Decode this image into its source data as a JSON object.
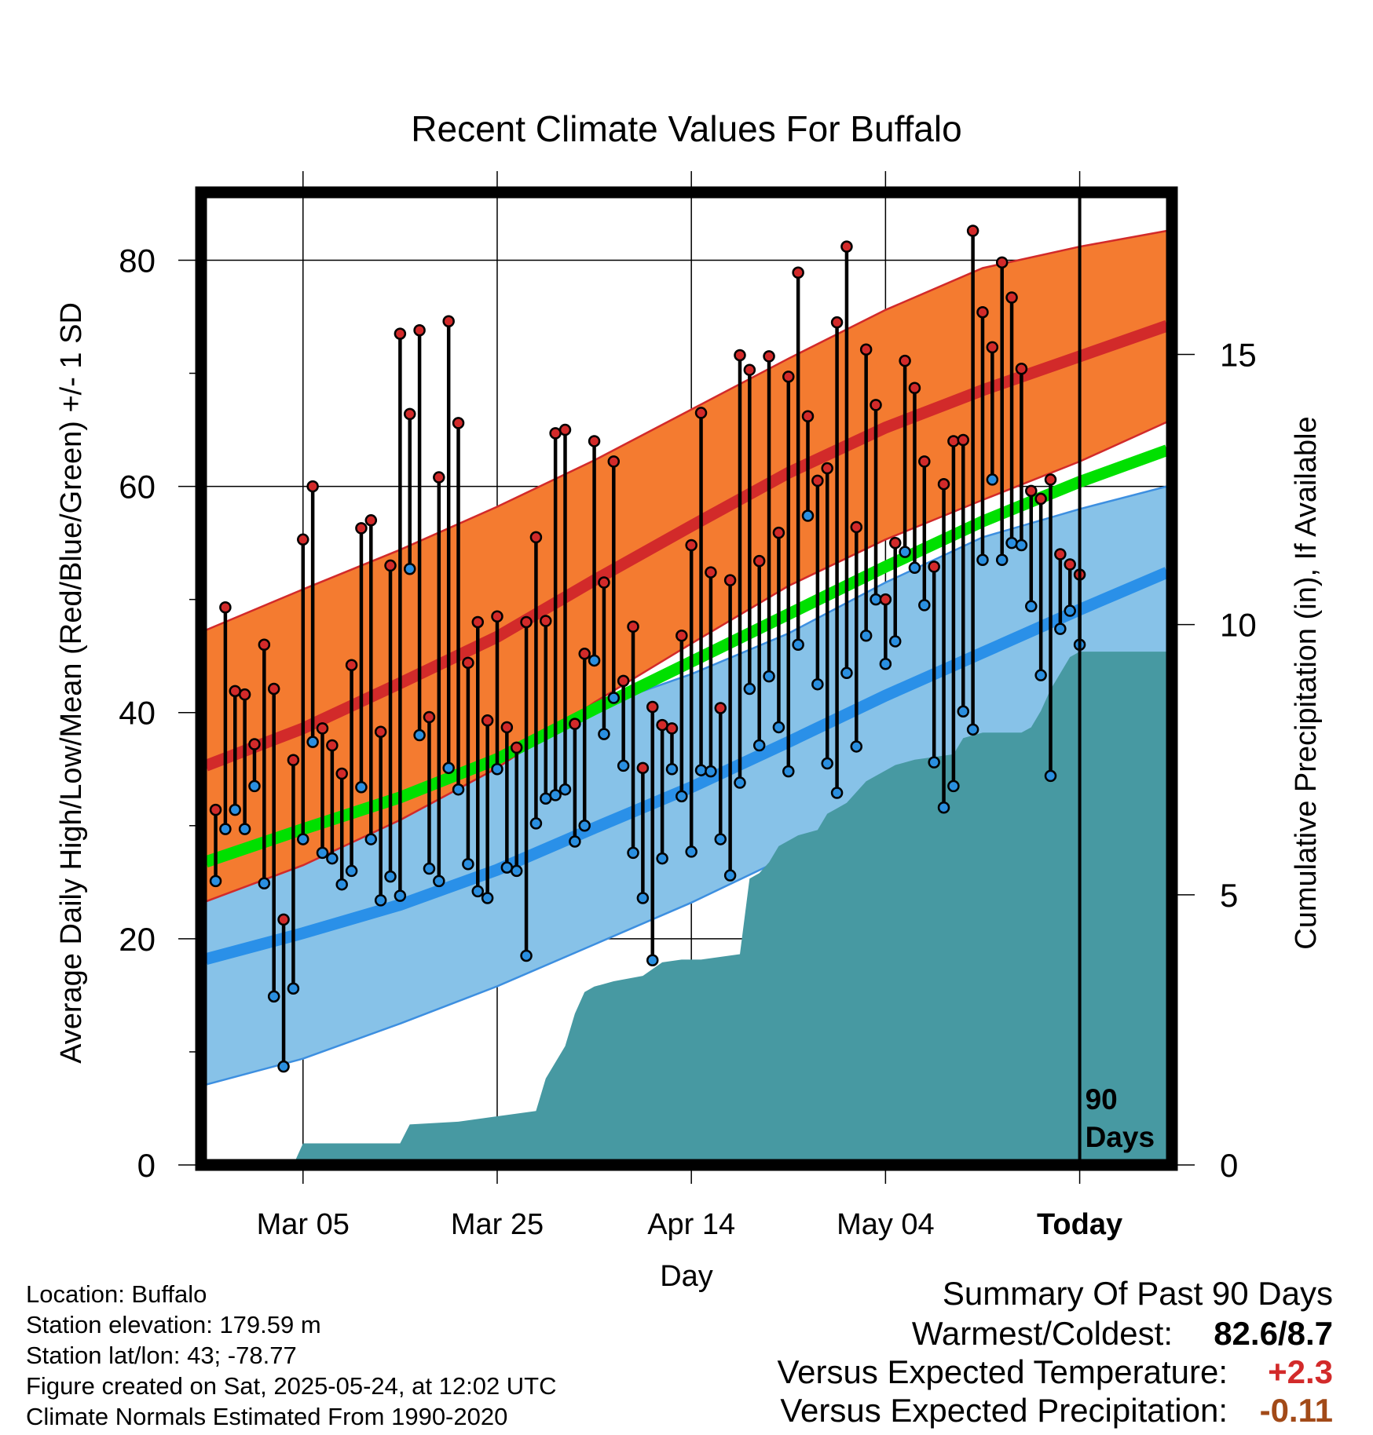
{
  "chart_data": {
    "type": "line",
    "title": "Recent Climate Values For Buffalo",
    "xlabel": "Day",
    "ylabel": "Average Daily High/Low/Mean (Red/Blue/Green) +/- 1 SD",
    "y2label": "Cumulative Precipitation (in), If Available",
    "ylim": [
      0,
      86
    ],
    "y2lim": [
      0,
      18
    ],
    "yticks": [
      "0",
      "20",
      "40",
      "60",
      "80"
    ],
    "y2ticks": [
      "0",
      "5",
      "10",
      "15"
    ],
    "xticks": [
      "Mar 05",
      "Mar 25",
      "Apr 14",
      "May 04",
      "Today"
    ],
    "xtick_days": [
      -80,
      -60,
      -40,
      -20,
      0
    ],
    "xlim_days": [
      -90.5,
      9.5
    ],
    "today_marker": {
      "day": 0,
      "label": [
        "90",
        "Days"
      ]
    },
    "grid": true,
    "colors": {
      "high_band": "#f47b30",
      "high_mean": "#d22a2a",
      "low_band": "#87c2e8",
      "low_mean": "#2a90e8",
      "low_band_edge": "#3d8fe0",
      "mean_line": "#00e000",
      "overlap": "#8e1515",
      "precip": "#4799a2",
      "high_dot": "#d22a2a",
      "low_dot": "#2a8fe0",
      "positive": "#d22a2a",
      "precip_dev": "#a24a18"
    },
    "normals": {
      "day": [
        -90,
        -80,
        -70,
        -60,
        -50,
        -40,
        -30,
        -20,
        -10,
        0,
        9
      ],
      "high_mean": [
        35.3,
        38.6,
        42.6,
        46.7,
        51.7,
        56.5,
        61.2,
        65.2,
        68.5,
        71.5,
        74.2
      ],
      "high_upper": [
        47.3,
        50.9,
        54.4,
        58.2,
        62.3,
        66.8,
        71.3,
        75.6,
        79.3,
        81.2,
        82.6
      ],
      "high_lower": [
        23.3,
        26.5,
        30.5,
        35.1,
        40.9,
        46.1,
        51.2,
        55.3,
        58.8,
        62.2,
        65.7
      ],
      "low_mean": [
        18.2,
        20.5,
        23.0,
        26.1,
        29.8,
        33.4,
        37.4,
        41.5,
        45.3,
        49.1,
        52.4
      ],
      "low_upper": [
        29.8,
        32.6,
        34.8,
        37.6,
        40.4,
        43.4,
        47.0,
        51.5,
        55.5,
        58.0,
        60.0
      ],
      "low_lower": [
        7.1,
        9.4,
        12.5,
        15.8,
        19.5,
        23.2,
        27.3,
        31.2,
        35.0,
        39.1,
        44.7
      ],
      "mean": [
        26.8,
        29.7,
        32.5,
        35.9,
        40.3,
        44.5,
        48.7,
        52.9,
        56.9,
        60.4,
        63.2
      ]
    },
    "series": [
      {
        "name": "High",
        "values": [
          31.4,
          49.3,
          41.9,
          41.6,
          37.2,
          46.0,
          42.1,
          21.7,
          35.8,
          55.3,
          60.0,
          38.6,
          37.1,
          34.6,
          44.2,
          56.3,
          57.0,
          38.3,
          53.0,
          73.5,
          66.4,
          73.8,
          39.6,
          60.8,
          74.6,
          65.6,
          44.4,
          48.0,
          39.3,
          48.5,
          38.7,
          36.9,
          48.0,
          55.5,
          48.1,
          64.7,
          65.0,
          39.0,
          45.2,
          64.0,
          51.5,
          62.2,
          42.8,
          47.6,
          35.1,
          40.5,
          38.9,
          38.6,
          46.8,
          54.8,
          66.5,
          52.4,
          40.4,
          51.7,
          71.6,
          70.3,
          53.4,
          71.5,
          55.9,
          69.7,
          78.9,
          66.2,
          60.5,
          61.6,
          74.5,
          81.2,
          56.4,
          72.1,
          67.2,
          50.0,
          55.0,
          71.1,
          68.7,
          62.2,
          52.9,
          60.2,
          64.0,
          64.1,
          82.6,
          75.4,
          72.3,
          79.8,
          76.7,
          70.4,
          59.6,
          58.9,
          60.6,
          54.0,
          53.1,
          52.2
        ]
      },
      {
        "name": "Low",
        "values": [
          25.1,
          29.7,
          31.4,
          29.7,
          33.5,
          24.9,
          14.9,
          8.7,
          15.6,
          28.8,
          37.4,
          27.6,
          27.1,
          24.8,
          26.0,
          33.4,
          28.8,
          23.4,
          25.5,
          23.8,
          52.7,
          38.0,
          26.2,
          25.1,
          35.1,
          33.2,
          26.6,
          24.2,
          23.6,
          35.0,
          26.3,
          26.0,
          18.5,
          30.2,
          32.4,
          32.7,
          33.2,
          28.6,
          30.0,
          44.6,
          38.1,
          41.3,
          35.3,
          27.6,
          23.6,
          18.1,
          27.1,
          35.0,
          32.6,
          27.7,
          34.9,
          34.8,
          28.8,
          25.6,
          33.8,
          42.1,
          37.1,
          43.2,
          38.7,
          34.8,
          46.0,
          57.4,
          42.5,
          35.5,
          32.9,
          43.5,
          37.0,
          46.8,
          50.0,
          44.3,
          46.3,
          54.2,
          52.8,
          49.5,
          35.6,
          31.6,
          33.5,
          40.1,
          38.5,
          53.5,
          60.6,
          53.5,
          55.0,
          54.8,
          49.4,
          43.3,
          34.4,
          47.4,
          49.0,
          46.0
        ]
      },
      {
        "name": "Cumulative Precipitation",
        "axis": "right",
        "day": [
          -90,
          -81,
          -80,
          -70,
          -69,
          -64,
          -60,
          -56,
          -55,
          -53,
          -52,
          -51,
          -50,
          -48,
          -45,
          -43,
          -41,
          -39,
          -35,
          -34,
          -33,
          -32,
          -31,
          -29,
          -27,
          -26,
          -25,
          -24,
          -23,
          -22,
          -21,
          -20,
          -19,
          -17,
          -13,
          -12,
          -10,
          -9,
          -8,
          -6,
          -5,
          -4,
          -3,
          -2,
          -1,
          0,
          9
        ],
        "values": [
          0,
          0,
          0.4,
          0.4,
          0.75,
          0.8,
          0.9,
          1.0,
          1.6,
          2.2,
          2.8,
          3.2,
          3.3,
          3.4,
          3.5,
          3.75,
          3.8,
          3.8,
          3.9,
          5.3,
          5.4,
          5.6,
          5.9,
          6.1,
          6.2,
          6.5,
          6.6,
          6.7,
          6.9,
          7.1,
          7.2,
          7.3,
          7.4,
          7.5,
          7.6,
          7.9,
          8.0,
          8.0,
          8.0,
          8.0,
          8.1,
          8.4,
          8.8,
          9.1,
          9.4,
          9.5,
          9.5
        ]
      }
    ]
  },
  "metadata": {
    "location": "Location: Buffalo",
    "elevation": "Station elevation: 179.59 m",
    "latlon": "Station lat/lon: 43; -78.77",
    "created": "Figure created on Sat, 2025-05-24, at 12:02 UTC",
    "normals": "Climate Normals Estimated From 1990-2020"
  },
  "summary": {
    "title": "Summary Of Past 90 Days",
    "warmest_label": "Warmest/Coldest:",
    "warmest_value": "82.6/8.7",
    "temp_label": "Versus Expected Temperature:",
    "temp_value": "+2.3",
    "precip_label": "Versus Expected Precipitation:",
    "precip_value": "-0.11"
  }
}
